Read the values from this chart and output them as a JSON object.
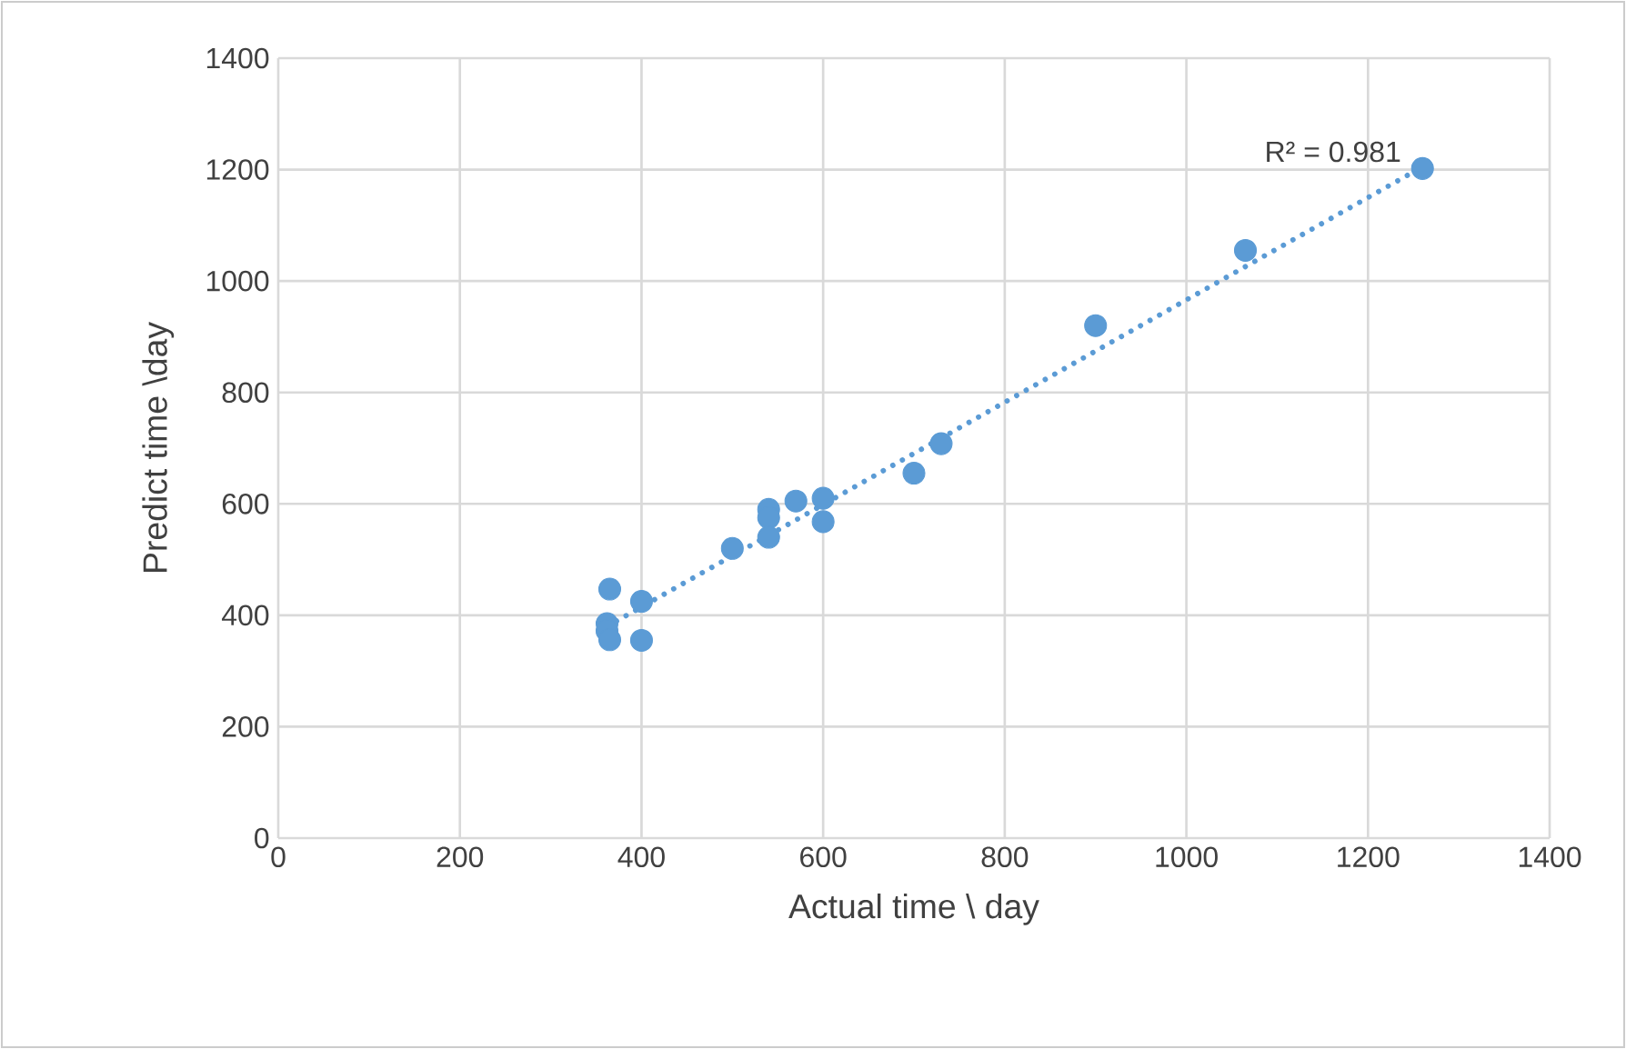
{
  "chart_data": {
    "type": "scatter",
    "xlabel": "Actual time \\ day",
    "ylabel": "Predict time \\day",
    "xlim": [
      0,
      1400
    ],
    "ylim": [
      0,
      1400
    ],
    "xticks": [
      0,
      200,
      400,
      600,
      800,
      1000,
      1200,
      1400
    ],
    "yticks": [
      0,
      200,
      400,
      600,
      800,
      1000,
      1200,
      1400
    ],
    "grid": true,
    "annotations": [
      "R² = 0.981"
    ],
    "series": [
      {
        "marker": "circle",
        "color": "#5b9bd5",
        "x": [
          365,
          362,
          362,
          365,
          400,
          400,
          500,
          540,
          540,
          540,
          570,
          600,
          600,
          700,
          730,
          900,
          1065,
          1260
        ],
        "values": [
          447,
          385,
          372,
          356,
          425,
          355,
          520,
          590,
          575,
          540,
          605,
          610,
          568,
          655,
          708,
          920,
          1055,
          1202
        ]
      },
      {
        "type": "line",
        "line_style": "dotted",
        "color": "#5b9bd5",
        "x": [
          362,
          1260
        ],
        "values": [
          380,
          1205
        ]
      }
    ]
  }
}
